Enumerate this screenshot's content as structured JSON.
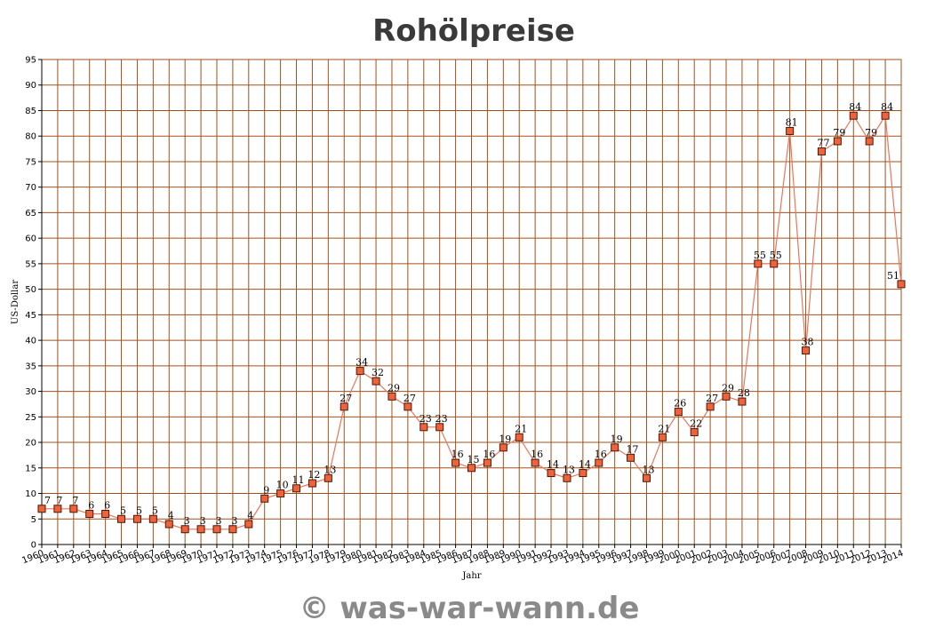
{
  "chart_data": {
    "type": "line",
    "title": "Rohölpreise",
    "xlabel": "Jahr",
    "ylabel": "US-Dollar",
    "ylim": [
      0,
      95
    ],
    "yticks": [
      0,
      5,
      10,
      15,
      20,
      25,
      30,
      35,
      40,
      45,
      50,
      55,
      60,
      65,
      70,
      75,
      80,
      85,
      90,
      95
    ],
    "grid": true,
    "x": [
      "1960",
      "1961",
      "1962",
      "1963",
      "1964",
      "1965",
      "1966",
      "1967",
      "1968",
      "1969",
      "1970",
      "1971",
      "1972",
      "1973",
      "1974",
      "1975",
      "1976",
      "1977",
      "1978",
      "1979",
      "1980",
      "1981",
      "1982",
      "1983",
      "1984",
      "1985",
      "1986",
      "1987",
      "1988",
      "1989",
      "1990",
      "1991",
      "1992",
      "1993",
      "1994",
      "1995",
      "1996",
      "1997",
      "1998",
      "1999",
      "2000",
      "2001",
      "2002",
      "2003",
      "2004",
      "2005",
      "2006",
      "2007",
      "2008",
      "2009",
      "2010",
      "2011",
      "2012",
      "2013",
      "2014"
    ],
    "series": [
      {
        "values": [
          7,
          7,
          7,
          6,
          6,
          5,
          5,
          5,
          4,
          3,
          3,
          3,
          3,
          4,
          9,
          10,
          11,
          12,
          13,
          27,
          34,
          32,
          29,
          27,
          23,
          23,
          16,
          15,
          16,
          19,
          21,
          16,
          14,
          13,
          14,
          16,
          19,
          17,
          13,
          21,
          26,
          22,
          27,
          29,
          28,
          55,
          55,
          81,
          38,
          77,
          79,
          84,
          79,
          84,
          51
        ]
      }
    ],
    "colors": {
      "line": "#e8775a",
      "marker_fill": "#f0623a",
      "marker_stroke": "#4a1a0a",
      "grid": "#a0521a",
      "axis": "#000000"
    }
  },
  "footer": {
    "copyright": "© was-war-wann.de"
  }
}
